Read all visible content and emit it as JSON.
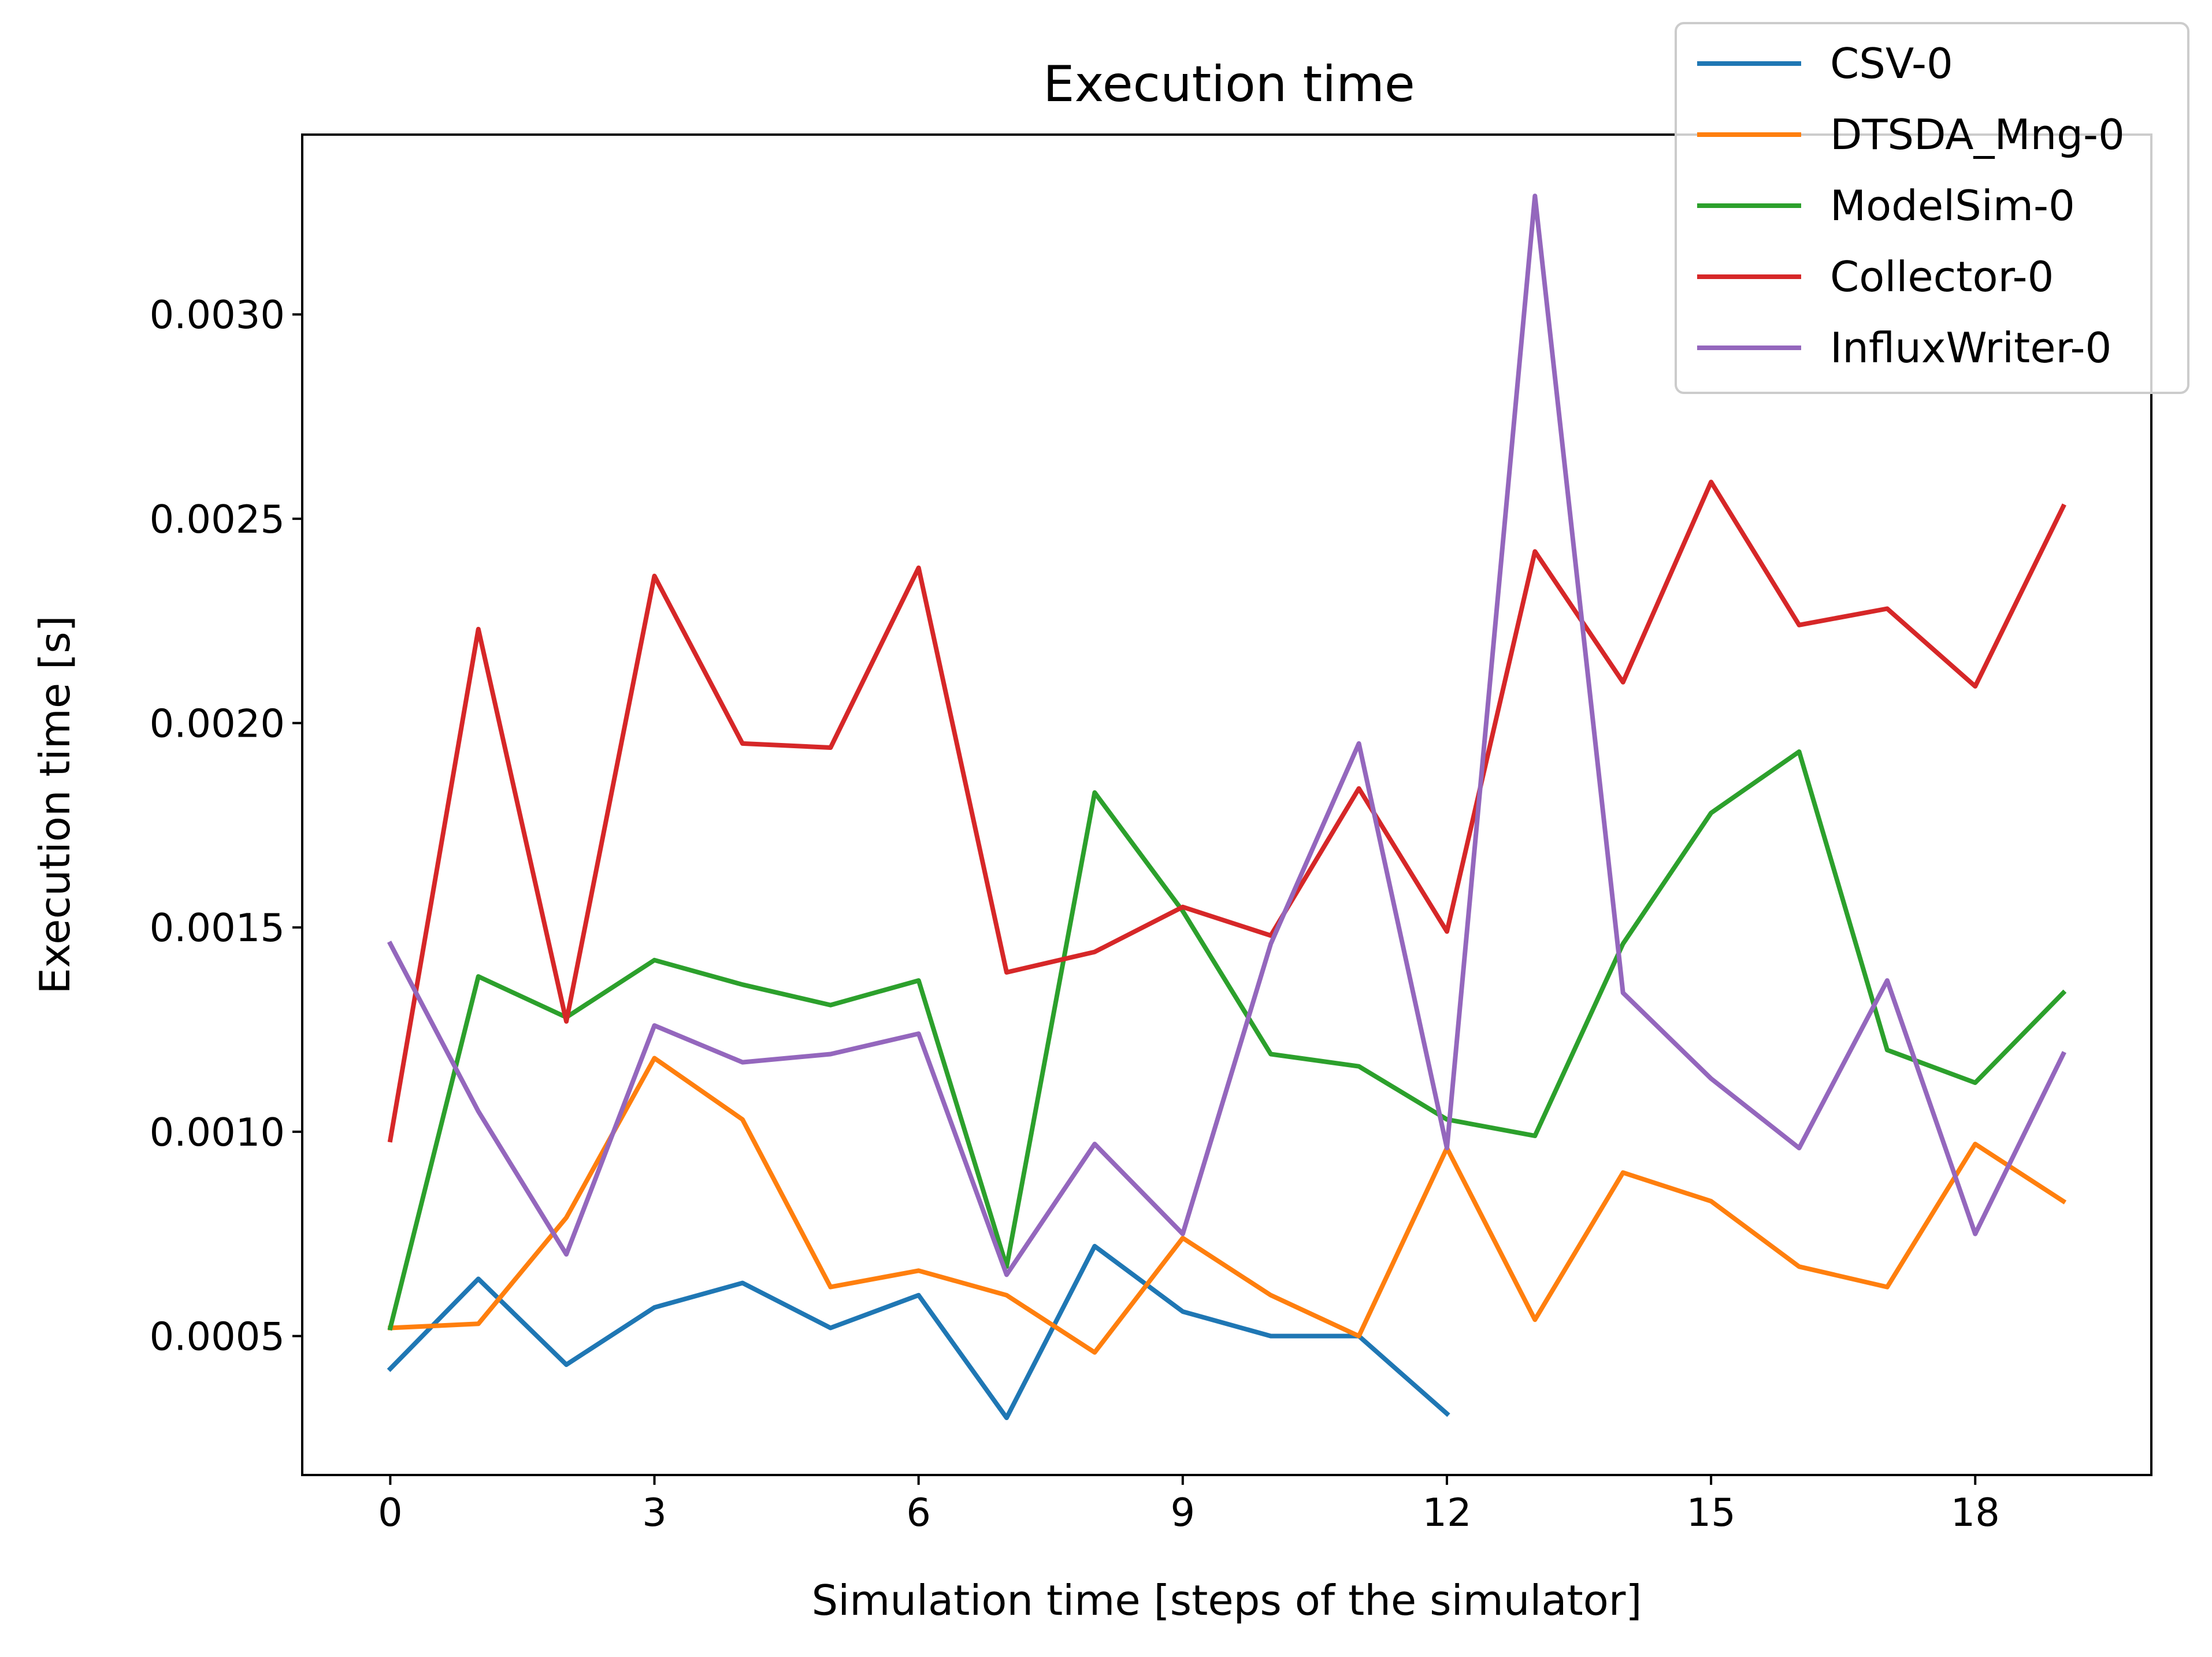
{
  "chart_data": {
    "type": "line",
    "title": "Execution time",
    "xlabel": "Simulation time [steps of the simulator]",
    "ylabel": "Execution time [s]",
    "xlim": [
      -1,
      20
    ],
    "ylim": [
      0.00016,
      0.00344
    ],
    "xticks": [
      0,
      3,
      6,
      9,
      12,
      15,
      18
    ],
    "xtick_labels": [
      "0",
      "3",
      "6",
      "9",
      "12",
      "15",
      "18"
    ],
    "yticks": [
      0.0005,
      0.001,
      0.0015,
      0.002,
      0.0025,
      0.003
    ],
    "ytick_labels": [
      "0.0005",
      "0.0010",
      "0.0015",
      "0.0020",
      "0.0025",
      "0.0030"
    ],
    "grid": false,
    "legend_position": "top-right",
    "series": [
      {
        "name": "CSV-0",
        "color": "#1f77b4",
        "x": [
          0,
          1,
          2,
          3,
          4,
          5,
          6,
          7,
          8,
          9,
          10,
          11,
          12
        ],
        "values": [
          0.00042,
          0.00064,
          0.00043,
          0.00057,
          0.00063,
          0.00052,
          0.0006,
          0.0003,
          0.00072,
          0.00056,
          0.0005,
          0.0005,
          0.00031
        ]
      },
      {
        "name": "DTSDA_Mng-0",
        "color": "#ff7f0e",
        "x": [
          0,
          1,
          2,
          3,
          4,
          5,
          6,
          7,
          8,
          9,
          10,
          11,
          12,
          13,
          14,
          15,
          16,
          17,
          18,
          19
        ],
        "values": [
          0.00052,
          0.00053,
          0.00079,
          0.00118,
          0.00103,
          0.00062,
          0.00066,
          0.0006,
          0.00046,
          0.00074,
          0.0006,
          0.0005,
          0.00096,
          0.00054,
          0.0009,
          0.00083,
          0.00067,
          0.00062,
          0.00097,
          0.00083
        ]
      },
      {
        "name": "ModelSim-0",
        "color": "#2ca02c",
        "x": [
          0,
          1,
          2,
          3,
          4,
          5,
          6,
          7,
          8,
          9,
          10,
          11,
          12,
          13,
          14,
          15,
          16,
          17,
          18,
          19
        ],
        "values": [
          0.00052,
          0.00138,
          0.00128,
          0.00142,
          0.00136,
          0.00131,
          0.00137,
          0.00067,
          0.00183,
          0.00154,
          0.00119,
          0.00116,
          0.00103,
          0.00099,
          0.00146,
          0.00178,
          0.00193,
          0.0012,
          0.00112,
          0.00134
        ]
      },
      {
        "name": "Collector-0",
        "color": "#d62728",
        "x": [
          0,
          1,
          2,
          3,
          4,
          5,
          6,
          7,
          8,
          9,
          10,
          11,
          12,
          13,
          14,
          15,
          16,
          17,
          18,
          19
        ],
        "values": [
          0.00098,
          0.00223,
          0.00127,
          0.00236,
          0.00195,
          0.00194,
          0.00238,
          0.00139,
          0.00144,
          0.00155,
          0.00148,
          0.00184,
          0.00149,
          0.00242,
          0.0021,
          0.00259,
          0.00224,
          0.00228,
          0.00209,
          0.00253
        ]
      },
      {
        "name": "InfluxWriter-0",
        "color": "#9467bd",
        "x": [
          0,
          1,
          2,
          3,
          4,
          5,
          6,
          7,
          8,
          9,
          10,
          11,
          12,
          13,
          14,
          15,
          16,
          17,
          18,
          19
        ],
        "values": [
          0.00146,
          0.00105,
          0.0007,
          0.00126,
          0.00117,
          0.00119,
          0.00124,
          0.00065,
          0.00097,
          0.00075,
          0.00146,
          0.00195,
          0.00096,
          0.00329,
          0.00134,
          0.00113,
          0.00096,
          0.00137,
          0.00075,
          0.00119
        ]
      }
    ]
  }
}
